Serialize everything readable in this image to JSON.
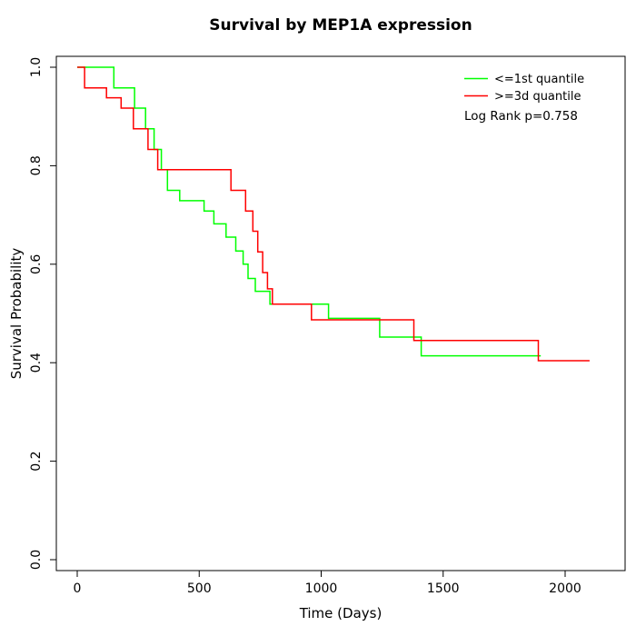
{
  "title": "Survival by MEP1A expression",
  "axes": {
    "xlabel": "Time (Days)",
    "ylabel": "Survival Probability",
    "xticks": [
      0,
      500,
      1000,
      1500,
      2000
    ],
    "ytick_labels": [
      "0.0",
      "0.2",
      "0.4",
      "0.6",
      "0.8",
      "1.0"
    ],
    "yticks": [
      0.0,
      0.2,
      0.4,
      0.6,
      0.8,
      1.0
    ]
  },
  "legend": {
    "position": "top-right",
    "items": [
      {
        "label": "<=1st quantile",
        "color": "#00ff00"
      },
      {
        "label": ">=3d quantile",
        "color": "#ff0000"
      }
    ],
    "note": "Log Rank p=0.758"
  },
  "chart_data": {
    "type": "line",
    "subtype": "kaplan-meier-step",
    "title": "Survival by MEP1A expression",
    "xlabel": "Time (Days)",
    "ylabel": "Survival Probability",
    "xlim": [
      0,
      2100
    ],
    "ylim": [
      0,
      1
    ],
    "grid": false,
    "legend_position": "top-right",
    "annotation": "Log Rank p=0.758",
    "series": [
      {
        "name": "<=1st quantile",
        "color": "#00ff00",
        "points": [
          [
            0,
            1.0
          ],
          [
            150,
            0.958
          ],
          [
            235,
            0.917
          ],
          [
            280,
            0.875
          ],
          [
            315,
            0.833
          ],
          [
            345,
            0.792
          ],
          [
            370,
            0.75
          ],
          [
            420,
            0.729
          ],
          [
            520,
            0.708
          ],
          [
            560,
            0.682
          ],
          [
            610,
            0.655
          ],
          [
            650,
            0.627
          ],
          [
            680,
            0.6
          ],
          [
            700,
            0.571
          ],
          [
            730,
            0.545
          ],
          [
            790,
            0.519
          ],
          [
            1030,
            0.49
          ],
          [
            1240,
            0.452
          ],
          [
            1410,
            0.414
          ],
          [
            1900,
            0.414
          ]
        ]
      },
      {
        "name": ">=3d quantile",
        "color": "#ff0000",
        "points": [
          [
            0,
            1.0
          ],
          [
            30,
            0.958
          ],
          [
            120,
            0.938
          ],
          [
            180,
            0.917
          ],
          [
            230,
            0.875
          ],
          [
            290,
            0.833
          ],
          [
            330,
            0.792
          ],
          [
            630,
            0.75
          ],
          [
            690,
            0.708
          ],
          [
            720,
            0.667
          ],
          [
            740,
            0.625
          ],
          [
            760,
            0.583
          ],
          [
            780,
            0.55
          ],
          [
            800,
            0.519
          ],
          [
            960,
            0.487
          ],
          [
            1380,
            0.445
          ],
          [
            1890,
            0.404
          ],
          [
            2100,
            0.404
          ]
        ]
      }
    ]
  }
}
